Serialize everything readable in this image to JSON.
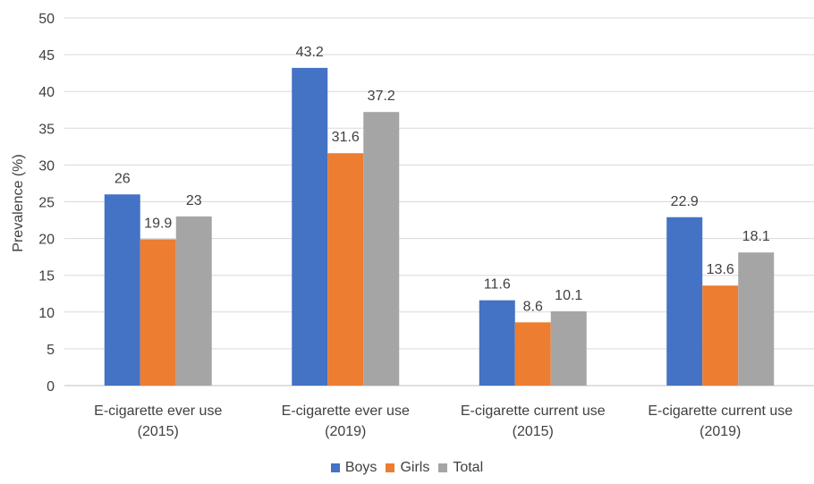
{
  "chart_data": {
    "type": "bar",
    "title": "",
    "xlabel": "",
    "ylabel": "Prevalence (%)",
    "ylim": [
      0,
      50
    ],
    "yticks": [
      0,
      5,
      10,
      15,
      20,
      25,
      30,
      35,
      40,
      45,
      50
    ],
    "grid": true,
    "legend_position": "bottom",
    "categories": [
      [
        "E-cigarette ever use",
        "(2015)"
      ],
      [
        "E-cigarette ever use",
        "(2019)"
      ],
      [
        "E-cigarette current use",
        "(2015)"
      ],
      [
        "E-cigarette current use",
        "(2019)"
      ]
    ],
    "series": [
      {
        "name": "Boys",
        "color": "#4472C4",
        "values": [
          26,
          43.2,
          11.6,
          22.9
        ]
      },
      {
        "name": "Girls",
        "color": "#ED7D31",
        "values": [
          19.9,
          31.6,
          8.6,
          13.6
        ]
      },
      {
        "name": "Total",
        "color": "#A5A5A5",
        "values": [
          23,
          37.2,
          10.1,
          18.1
        ]
      }
    ]
  }
}
